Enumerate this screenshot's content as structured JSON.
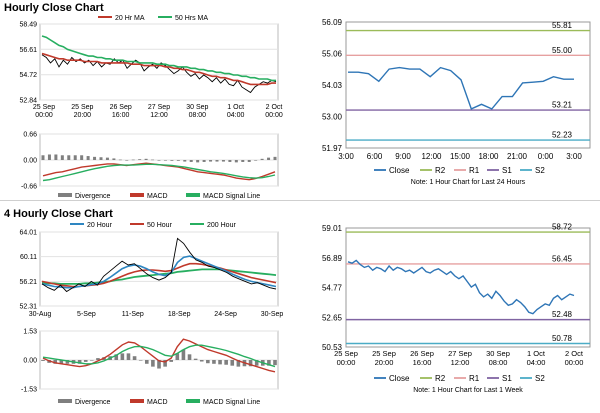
{
  "sections": [
    {
      "title": "Hourly Close Chart"
    },
    {
      "title": "4 Hourly Close Chart"
    }
  ],
  "colors": {
    "price": "#000000",
    "ma_short": "#c0392b",
    "ma_long": "#27ae60",
    "ma200": "#2e86c1",
    "macd": "#c0392b",
    "signal": "#27ae60",
    "divergence": "#7f7f7f",
    "close": "#2e75b6",
    "r2": "#9bbb59",
    "r1": "#e6a0a0",
    "s1": "#8064a2",
    "s2": "#4bacc6"
  },
  "chart_data": [
    {
      "id": "hourly-price",
      "type": "line",
      "legend": [
        "20 Hr MA",
        "50 Hrs MA"
      ],
      "x_ticks": [
        {
          "l1": "25 Sep",
          "l2": "00:00"
        },
        {
          "l1": "25 Sep",
          "l2": "20:00"
        },
        {
          "l1": "26 Sep",
          "l2": "16:00"
        },
        {
          "l1": "27 Sep",
          "l2": "12:00"
        },
        {
          "l1": "30 Sep",
          "l2": "08:00"
        },
        {
          "l1": "1 Oct",
          "l2": "04:00"
        },
        {
          "l1": "2 Oct",
          "l2": "00:00"
        }
      ],
      "y_ticks": [
        "58.49",
        "56.61",
        "54.72",
        "52.84"
      ],
      "ylim": [
        52.84,
        58.49
      ],
      "series": [
        {
          "name": "Close",
          "values": [
            56.2,
            56.0,
            55.6,
            55.9,
            55.3,
            55.8,
            55.5,
            56.0,
            55.7,
            55.9,
            55.6,
            55.8,
            55.4,
            55.7,
            55.3,
            55.6,
            55.5,
            55.9,
            55.6,
            55.8,
            55.2,
            55.5,
            55.8,
            55.6,
            55.0,
            55.3,
            55.5,
            55.2,
            55.6,
            55.4,
            55.1,
            54.8,
            55.0,
            55.3,
            54.9,
            54.6,
            54.8,
            54.4,
            54.7,
            54.5,
            54.2,
            54.5,
            54.1,
            54.4,
            54.0,
            53.9,
            54.3,
            53.8,
            53.6,
            53.4,
            53.8,
            54.0,
            54.2,
            54.1,
            54.3,
            54.2
          ]
        },
        {
          "name": "20 Hr MA",
          "values": [
            56.3,
            56.2,
            56.1,
            56.0,
            55.9,
            55.9,
            55.8,
            55.8,
            55.8,
            55.8,
            55.7,
            55.7,
            55.7,
            55.7,
            55.6,
            55.6,
            55.6,
            55.6,
            55.6,
            55.6,
            55.6,
            55.5,
            55.5,
            55.5,
            55.4,
            55.4,
            55.4,
            55.4,
            55.4,
            55.3,
            55.3,
            55.2,
            55.2,
            55.1,
            55.1,
            55.0,
            54.9,
            54.9,
            54.8,
            54.7,
            54.6,
            54.6,
            54.5,
            54.5,
            54.4,
            54.3,
            54.3,
            54.2,
            54.1,
            54.0,
            54.0,
            54.0,
            54.0,
            54.0,
            54.1,
            54.1
          ]
        },
        {
          "name": "50 Hrs MA",
          "values": [
            57.6,
            57.5,
            57.3,
            57.1,
            56.9,
            56.8,
            56.6,
            56.5,
            56.4,
            56.3,
            56.2,
            56.1,
            56.1,
            56.0,
            56.0,
            55.9,
            55.9,
            55.8,
            55.8,
            55.8,
            55.7,
            55.7,
            55.7,
            55.6,
            55.6,
            55.6,
            55.6,
            55.5,
            55.5,
            55.5,
            55.4,
            55.4,
            55.3,
            55.3,
            55.3,
            55.2,
            55.2,
            55.1,
            55.1,
            55.0,
            55.0,
            54.9,
            54.9,
            54.8,
            54.8,
            54.7,
            54.7,
            54.6,
            54.6,
            54.5,
            54.5,
            54.4,
            54.4,
            54.4,
            54.3,
            54.3
          ]
        }
      ]
    },
    {
      "id": "hourly-macd",
      "type": "line",
      "legend": [
        "Divergence",
        "MACD",
        "MACD Signal Line"
      ],
      "y_ticks": [
        "0.66",
        "0.00",
        "-0.66"
      ],
      "ylim": [
        -0.66,
        0.66
      ],
      "series": [
        {
          "name": "MACD",
          "values": [
            -0.4,
            -0.36,
            -0.32,
            -0.3,
            -0.26,
            -0.22,
            -0.18,
            -0.16,
            -0.14,
            -0.12,
            -0.1,
            -0.1,
            -0.12,
            -0.14,
            -0.12,
            -0.1,
            -0.08,
            -0.1,
            -0.12,
            -0.14,
            -0.16,
            -0.18,
            -0.22,
            -0.26,
            -0.3,
            -0.32,
            -0.34,
            -0.36,
            -0.38,
            -0.42,
            -0.46,
            -0.48,
            -0.5,
            -0.47,
            -0.42,
            -0.36,
            -0.3
          ]
        },
        {
          "name": "MACD Signal Line",
          "values": [
            -0.52,
            -0.5,
            -0.46,
            -0.42,
            -0.38,
            -0.34,
            -0.3,
            -0.26,
            -0.22,
            -0.19,
            -0.16,
            -0.14,
            -0.13,
            -0.13,
            -0.13,
            -0.12,
            -0.11,
            -0.11,
            -0.12,
            -0.13,
            -0.14,
            -0.16,
            -0.18,
            -0.21,
            -0.24,
            -0.27,
            -0.3,
            -0.32,
            -0.34,
            -0.37,
            -0.4,
            -0.43,
            -0.45,
            -0.46,
            -0.45,
            -0.42,
            -0.38
          ]
        },
        {
          "name": "Divergence",
          "values": [
            0.12,
            0.14,
            0.14,
            0.12,
            0.12,
            0.12,
            0.12,
            0.1,
            0.08,
            0.07,
            0.06,
            0.04,
            0.01,
            -0.01,
            0.01,
            0.02,
            0.03,
            0.01,
            0.0,
            -0.01,
            -0.02,
            -0.02,
            -0.04,
            -0.05,
            -0.06,
            -0.05,
            -0.04,
            -0.04,
            -0.04,
            -0.05,
            -0.06,
            -0.05,
            -0.05,
            -0.01,
            0.03,
            0.06,
            0.08
          ]
        }
      ]
    },
    {
      "id": "hourly-pivot",
      "type": "line",
      "legend": [
        "Close",
        "R2",
        "R1",
        "S1",
        "S2"
      ],
      "note": "Note: 1 Hour Chart for Last 24 Hours",
      "x_ticks": [
        "3:00",
        "6:00",
        "9:00",
        "12:00",
        "15:00",
        "18:00",
        "21:00",
        "0:00",
        "3:00"
      ],
      "y_ticks": [
        "56.09",
        "55.06",
        "54.03",
        "53.00",
        "51.97"
      ],
      "ylim": [
        51.97,
        56.09
      ],
      "levels": [
        {
          "name": "R2",
          "value": 55.81,
          "label": "55.81"
        },
        {
          "name": "R1",
          "value": 55.0,
          "label": "55.00"
        },
        {
          "name": "S1",
          "value": 53.21,
          "label": "53.21"
        },
        {
          "name": "S2",
          "value": 52.23,
          "label": "52.23"
        }
      ],
      "series": [
        {
          "name": "Close",
          "values": [
            54.45,
            54.45,
            54.4,
            54.15,
            54.55,
            54.6,
            54.55,
            54.55,
            54.3,
            54.6,
            54.5,
            54.2,
            53.25,
            53.4,
            53.25,
            53.65,
            53.65,
            54.1,
            54.12,
            54.15,
            54.3,
            54.22,
            54.22
          ]
        }
      ]
    },
    {
      "id": "4h-price",
      "type": "line",
      "legend": [
        "20 Hour",
        "50 Hour",
        "200 Hour"
      ],
      "x_ticks": [
        "30-Aug",
        "5-Sep",
        "11-Sep",
        "18-Sep",
        "24-Sep",
        "30-Sep"
      ],
      "y_ticks": [
        "64.01",
        "60.11",
        "56.21",
        "52.31"
      ],
      "ylim": [
        52.31,
        64.01
      ],
      "series": [
        {
          "name": "Close",
          "values": [
            55.8,
            55.2,
            54.8,
            55.6,
            54.6,
            55.2,
            55.8,
            55.4,
            56.2,
            55.6,
            57.0,
            57.8,
            58.6,
            59.4,
            58.8,
            59.0,
            58.2,
            57.4,
            56.8,
            56.4,
            56.8,
            57.6,
            63.0,
            62.2,
            60.8,
            59.6,
            59.2,
            58.6,
            58.4,
            58.0,
            57.6,
            57.0,
            56.6,
            56.2,
            55.8,
            56.0,
            55.6,
            55.2,
            55.0
          ]
        },
        {
          "name": "20 Hour",
          "values": [
            55.8,
            55.6,
            55.4,
            55.3,
            55.2,
            55.2,
            55.4,
            55.5,
            55.7,
            55.8,
            56.2,
            56.8,
            57.5,
            58.2,
            58.6,
            58.8,
            58.6,
            58.2,
            57.7,
            57.3,
            57.1,
            57.6,
            59.2,
            60.0,
            60.2,
            59.8,
            59.4,
            59.0,
            58.6,
            58.2,
            57.8,
            57.3,
            56.9,
            56.5,
            56.2,
            56.0,
            55.8,
            55.6,
            55.4
          ]
        },
        {
          "name": "50 Hour",
          "values": [
            56.2,
            56.0,
            55.8,
            55.6,
            55.5,
            55.4,
            55.4,
            55.5,
            55.6,
            55.7,
            55.9,
            56.2,
            56.6,
            57.0,
            57.4,
            57.7,
            57.9,
            58.0,
            58.0,
            57.9,
            57.8,
            57.9,
            58.3,
            58.7,
            59.0,
            59.0,
            58.9,
            58.7,
            58.5,
            58.3,
            58.0,
            57.7,
            57.4,
            57.1,
            56.8,
            56.6,
            56.4,
            56.2,
            56.0
          ]
        },
        {
          "name": "200 Hour",
          "values": [
            56.0,
            55.9,
            55.9,
            55.8,
            55.8,
            55.8,
            55.8,
            55.9,
            55.9,
            56.0,
            56.1,
            56.2,
            56.4,
            56.5,
            56.7,
            56.9,
            57.0,
            57.1,
            57.2,
            57.3,
            57.4,
            57.5,
            57.7,
            57.8,
            57.9,
            58.0,
            58.1,
            58.1,
            58.1,
            58.1,
            58.0,
            57.9,
            57.8,
            57.7,
            57.6,
            57.5,
            57.4,
            57.3,
            57.2
          ]
        }
      ]
    },
    {
      "id": "4h-macd",
      "type": "line",
      "legend": [
        "Divergence",
        "MACD",
        "MACD Signal Line"
      ],
      "y_ticks": [
        "1.53",
        "0.00",
        "-1.53"
      ],
      "ylim": [
        -1.53,
        1.53
      ],
      "series": [
        {
          "name": "MACD",
          "values": [
            0.1,
            -0.05,
            -0.15,
            -0.2,
            -0.25,
            -0.3,
            -0.35,
            -0.3,
            -0.2,
            -0.05,
            0.1,
            0.3,
            0.55,
            0.8,
            0.95,
            0.9,
            0.7,
            0.45,
            0.2,
            -0.05,
            -0.1,
            0.1,
            0.7,
            1.1,
            1.0,
            0.85,
            0.7,
            0.55,
            0.45,
            0.35,
            0.25,
            0.1,
            -0.05,
            -0.15,
            -0.25,
            -0.35,
            -0.45,
            -0.55,
            -0.62
          ]
        },
        {
          "name": "MACD Signal Line",
          "values": [
            0.15,
            0.1,
            0.05,
            0.0,
            -0.05,
            -0.1,
            -0.15,
            -0.2,
            -0.2,
            -0.15,
            -0.05,
            0.1,
            0.25,
            0.45,
            0.6,
            0.7,
            0.72,
            0.65,
            0.55,
            0.4,
            0.25,
            0.2,
            0.35,
            0.55,
            0.7,
            0.78,
            0.78,
            0.72,
            0.65,
            0.58,
            0.5,
            0.4,
            0.3,
            0.18,
            0.08,
            -0.05,
            -0.15,
            -0.25,
            -0.35
          ]
        },
        {
          "name": "Divergence",
          "values": [
            -0.05,
            -0.15,
            -0.2,
            -0.2,
            -0.2,
            -0.2,
            -0.2,
            -0.1,
            0.0,
            0.1,
            0.15,
            0.2,
            0.3,
            0.35,
            0.35,
            0.2,
            -0.02,
            -0.2,
            -0.35,
            -0.45,
            -0.35,
            -0.1,
            0.35,
            0.55,
            0.3,
            0.07,
            -0.08,
            -0.17,
            -0.2,
            -0.23,
            -0.25,
            -0.3,
            -0.35,
            -0.33,
            -0.33,
            -0.3,
            -0.3,
            -0.3,
            -0.27
          ]
        }
      ]
    },
    {
      "id": "4h-pivot",
      "type": "line",
      "legend": [
        "Close",
        "R2",
        "R1",
        "S1",
        "S2"
      ],
      "note": "Note: 1 Hour Chart for Last 1 Week",
      "x_ticks": [
        {
          "l1": "25 Sep",
          "l2": "00:00"
        },
        {
          "l1": "25 Sep",
          "l2": "20:00"
        },
        {
          "l1": "26 Sep",
          "l2": "16:00"
        },
        {
          "l1": "27 Sep",
          "l2": "12:00"
        },
        {
          "l1": "30 Sep",
          "l2": "08:00"
        },
        {
          "l1": "1 Oct",
          "l2": "04:00"
        },
        {
          "l1": "2 Oct",
          "l2": "00:00"
        }
      ],
      "y_ticks": [
        "59.01",
        "56.89",
        "54.77",
        "52.65",
        "50.53"
      ],
      "ylim": [
        50.53,
        59.01
      ],
      "levels": [
        {
          "name": "R2",
          "value": 58.72,
          "label": "58.72"
        },
        {
          "name": "R1",
          "value": 56.45,
          "label": "56.45"
        },
        {
          "name": "S1",
          "value": 52.48,
          "label": "52.48"
        },
        {
          "name": "S2",
          "value": 50.78,
          "label": "50.78"
        }
      ],
      "series": [
        {
          "name": "Close",
          "values": [
            56.6,
            56.5,
            56.7,
            56.4,
            56.2,
            56.3,
            56.0,
            56.2,
            56.1,
            55.9,
            56.3,
            56.0,
            56.2,
            56.1,
            55.9,
            56.0,
            55.8,
            56.0,
            56.2,
            55.9,
            55.8,
            56.0,
            56.1,
            55.9,
            55.7,
            55.9,
            55.6,
            55.4,
            55.6,
            55.2,
            54.8,
            55.0,
            54.4,
            54.1,
            54.3,
            54.0,
            54.5,
            54.2,
            53.8,
            53.5,
            53.6,
            53.9,
            53.7,
            53.4,
            53.0,
            52.9,
            53.2,
            53.4,
            53.6,
            53.5,
            54.0,
            54.2,
            53.9,
            54.1,
            54.3,
            54.2
          ]
        }
      ]
    }
  ]
}
